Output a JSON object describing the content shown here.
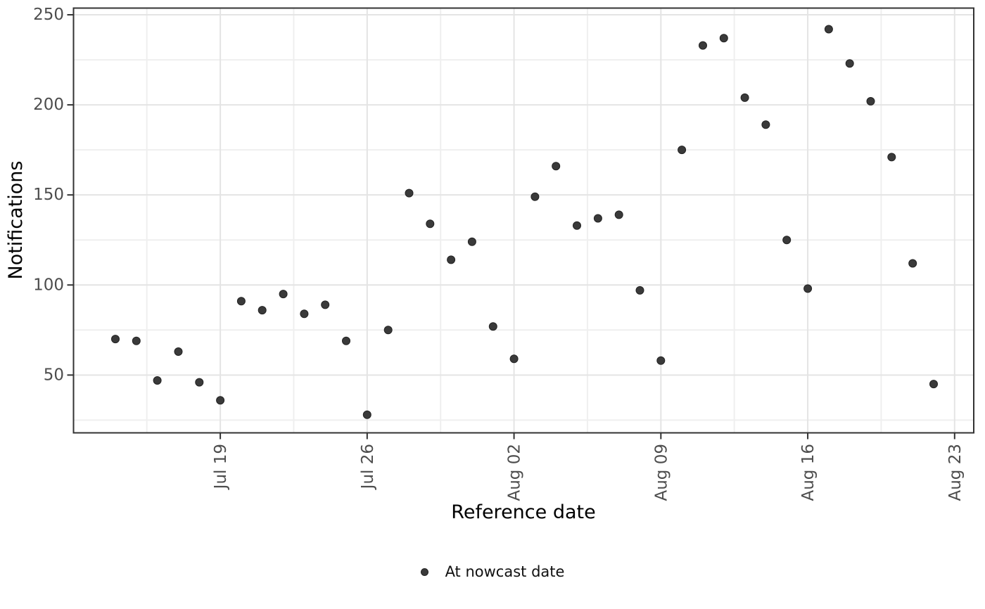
{
  "chart_data": {
    "type": "scatter",
    "title": "",
    "xlabel": "Reference date",
    "ylabel": "Notifications",
    "grid": true,
    "legend_position": "bottom",
    "points": [
      {
        "date": "Jul 14",
        "value": 70
      },
      {
        "date": "Jul 15",
        "value": 69
      },
      {
        "date": "Jul 16",
        "value": 47
      },
      {
        "date": "Jul 17",
        "value": 63
      },
      {
        "date": "Jul 18",
        "value": 46
      },
      {
        "date": "Jul 19",
        "value": 36
      },
      {
        "date": "Jul 20",
        "value": 91
      },
      {
        "date": "Jul 21",
        "value": 86
      },
      {
        "date": "Jul 22",
        "value": 95
      },
      {
        "date": "Jul 23",
        "value": 84
      },
      {
        "date": "Jul 24",
        "value": 89
      },
      {
        "date": "Jul 25",
        "value": 69
      },
      {
        "date": "Jul 26",
        "value": 28
      },
      {
        "date": "Jul 27",
        "value": 75
      },
      {
        "date": "Jul 28",
        "value": 151
      },
      {
        "date": "Jul 29",
        "value": 134
      },
      {
        "date": "Jul 30",
        "value": 114
      },
      {
        "date": "Jul 31",
        "value": 124
      },
      {
        "date": "Aug 01",
        "value": 77
      },
      {
        "date": "Aug 02",
        "value": 59
      },
      {
        "date": "Aug 03",
        "value": 149
      },
      {
        "date": "Aug 04",
        "value": 166
      },
      {
        "date": "Aug 05",
        "value": 133
      },
      {
        "date": "Aug 06",
        "value": 137
      },
      {
        "date": "Aug 07",
        "value": 139
      },
      {
        "date": "Aug 08",
        "value": 97
      },
      {
        "date": "Aug 09",
        "value": 58
      },
      {
        "date": "Aug 10",
        "value": 175
      },
      {
        "date": "Aug 11",
        "value": 233
      },
      {
        "date": "Aug 12",
        "value": 237
      },
      {
        "date": "Aug 13",
        "value": 204
      },
      {
        "date": "Aug 14",
        "value": 189
      },
      {
        "date": "Aug 15",
        "value": 125
      },
      {
        "date": "Aug 16",
        "value": 98
      },
      {
        "date": "Aug 17",
        "value": 242
      },
      {
        "date": "Aug 18",
        "value": 223
      },
      {
        "date": "Aug 19",
        "value": 202
      },
      {
        "date": "Aug 20",
        "value": 171
      },
      {
        "date": "Aug 21",
        "value": 112
      },
      {
        "date": "Aug 22",
        "value": 45
      }
    ],
    "x_ticks": [
      {
        "label": "Jul 19",
        "day": 5
      },
      {
        "label": "Jul 26",
        "day": 12
      },
      {
        "label": "Aug 02",
        "day": 19
      },
      {
        "label": "Aug 09",
        "day": 26
      },
      {
        "label": "Aug 16",
        "day": 33
      },
      {
        "label": "Aug 23",
        "day": 40
      }
    ],
    "x_minor_days": [
      1.5,
      8.5,
      15.5,
      22.5,
      29.5,
      36.5
    ],
    "y_ticks": [
      {
        "label": "50",
        "value": 50
      },
      {
        "label": "100",
        "value": 100
      },
      {
        "label": "150",
        "value": 150
      },
      {
        "label": "200",
        "value": 200
      },
      {
        "label": "250",
        "value": 250
      }
    ],
    "y_minor": [
      25,
      75,
      125,
      175,
      225
    ],
    "ylim": [
      18,
      254
    ],
    "legend": {
      "items": [
        {
          "label": "At nowcast date",
          "marker": "circle",
          "color": "#3a3a3a"
        }
      ]
    },
    "colors": {
      "point_fill": "#3a3a3a",
      "point_stroke": "#232323",
      "grid_major": "#e4e4e4",
      "grid_minor": "#efefef",
      "panel_border": "#333333",
      "tick_mark": "#333333",
      "tick_label": "#4d4d4d",
      "axis_title": "#000000",
      "panel_background": "#ffffff"
    }
  },
  "axes": {
    "x_title": "Reference date",
    "y_title": "Notifications"
  }
}
